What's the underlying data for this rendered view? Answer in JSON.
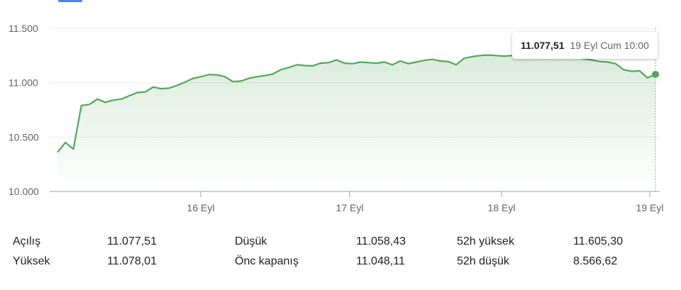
{
  "chart_data": {
    "type": "area",
    "x_ticks": [
      "16 Eyl",
      "17 Eyl",
      "18 Eyl",
      "19 Eyl"
    ],
    "y_ticks": [
      "11.500",
      "11.000",
      "10.500",
      "10.000"
    ],
    "y_tick_values": [
      11500,
      11000,
      10500,
      10000
    ],
    "ylim": [
      10000,
      11500
    ],
    "grid": true,
    "values": [
      10360,
      10450,
      10390,
      10790,
      10800,
      10850,
      10820,
      10840,
      10850,
      10880,
      10910,
      10915,
      10960,
      10945,
      10950,
      10975,
      11005,
      11040,
      11055,
      11075,
      11072,
      11055,
      11010,
      11015,
      11040,
      11055,
      11065,
      11080,
      11120,
      11140,
      11165,
      11158,
      11155,
      11180,
      11185,
      11210,
      11180,
      11175,
      11190,
      11185,
      11180,
      11190,
      11165,
      11200,
      11175,
      11190,
      11205,
      11215,
      11200,
      11195,
      11165,
      11225,
      11240,
      11250,
      11255,
      11250,
      11245,
      11250,
      11255,
      11250,
      11240,
      11230,
      11225,
      11235,
      11240,
      11235,
      11220,
      11210,
      11195,
      11190,
      11175,
      11120,
      11105,
      11110,
      11045,
      11077
    ],
    "line_color": "#56a55c",
    "fill_color": "#56a55c",
    "tooltip": {
      "value": "11.077,51",
      "time": "19 Eyl Cum 10:00"
    }
  },
  "stats": {
    "open_label": "Açılış",
    "open_value": "11.077,51",
    "high_label": "Yüksek",
    "high_value": "11.078,01",
    "low_label": "Düşük",
    "low_value": "11.058,43",
    "prev_close_label": "Önc kapanış",
    "prev_close_value": "11.048,11",
    "high52_label": "52h yüksek",
    "high52_value": "11.605,30",
    "low52_label": "52h düşük",
    "low52_value": "8.566,62"
  }
}
